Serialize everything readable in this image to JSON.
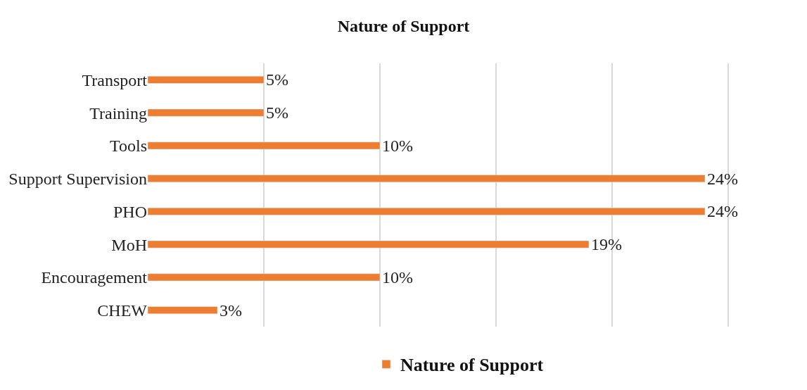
{
  "chart_data": {
    "type": "bar",
    "orientation": "horizontal",
    "title": "Nature of Support",
    "categories": [
      "Transport",
      "Training",
      "Tools",
      "Support Supervision",
      "PHO",
      "MoH",
      "Encouragement",
      "CHEW"
    ],
    "series": [
      {
        "name": "Nature of Support",
        "color": "#ed7d31",
        "values": [
          5,
          5,
          10,
          24,
          24,
          19,
          10,
          3
        ],
        "value_labels": [
          "5%",
          "5%",
          "10%",
          "24%",
          "24%",
          "19%",
          "10%",
          "3%"
        ]
      }
    ],
    "grid": "x",
    "legend": "bottom",
    "tick_labels": "y"
  }
}
